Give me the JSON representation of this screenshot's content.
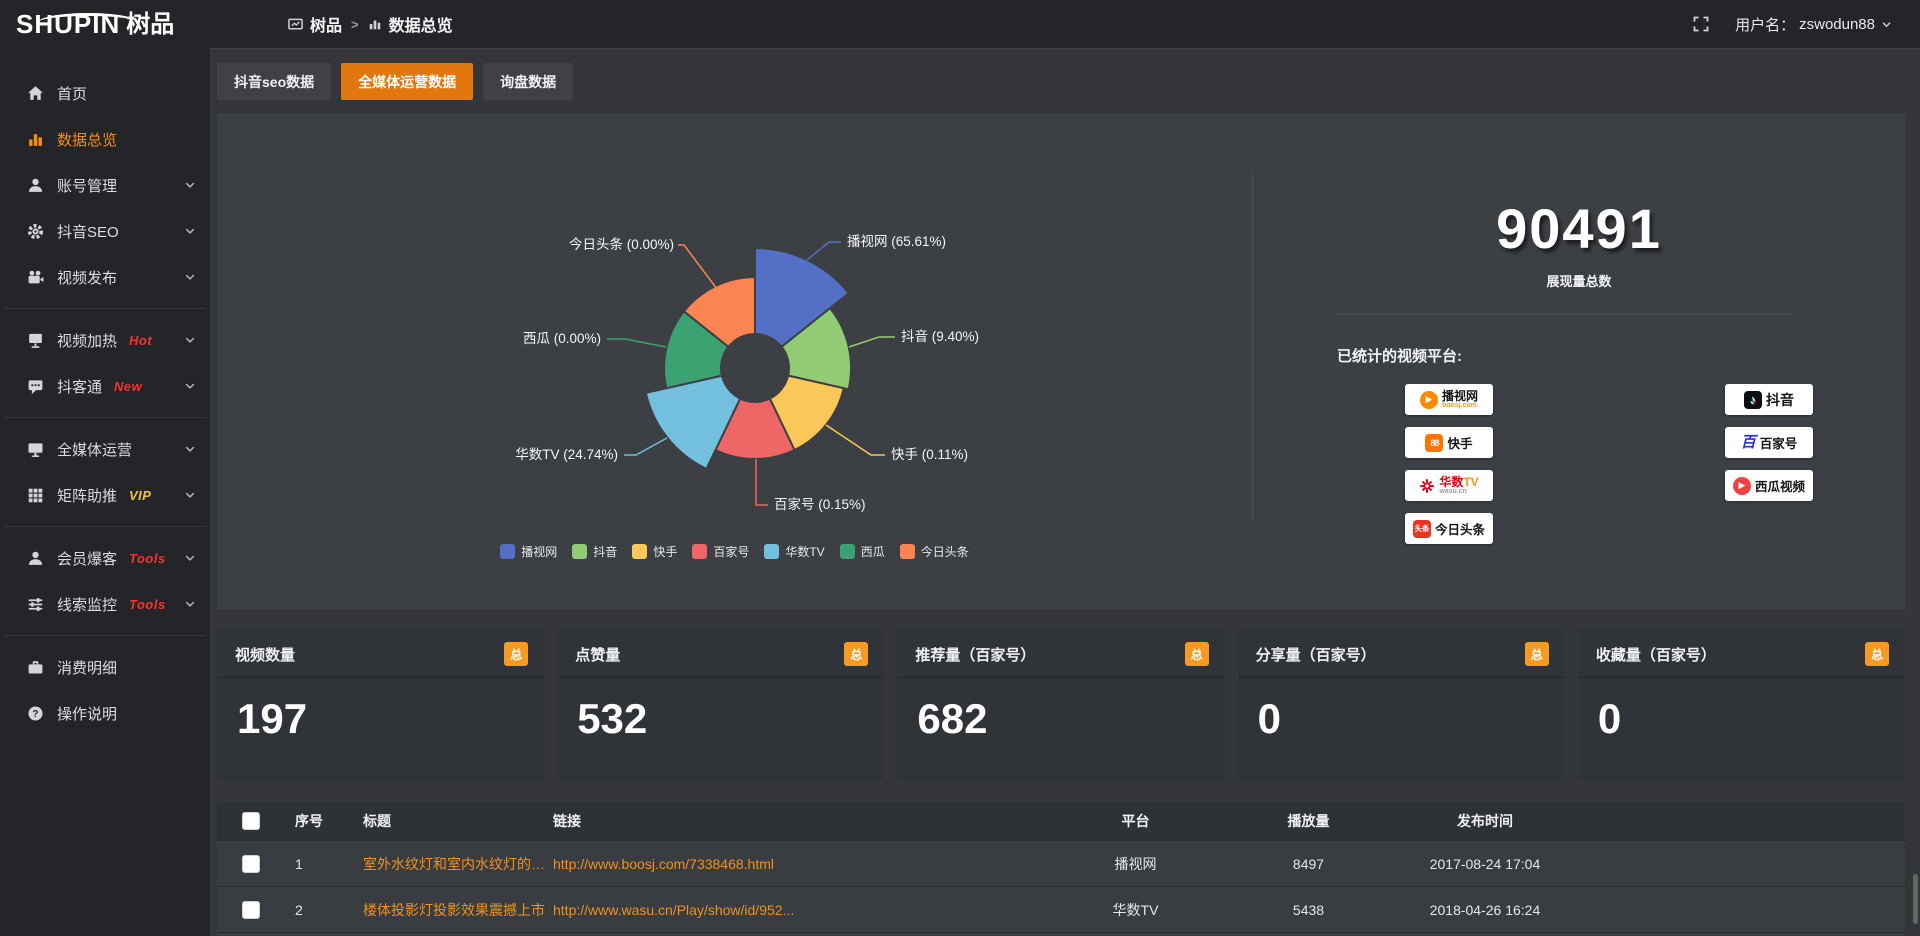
{
  "topbar": {
    "logo_en": "SHUPIN",
    "logo_cn": "树品",
    "breadcrumb": [
      "树品",
      "数据总览"
    ],
    "breadcrumb_sep": ">",
    "username_label": "用户名：",
    "username": "zswodun88"
  },
  "sidebar": {
    "items": [
      {
        "icon": "home",
        "label": "首页"
      },
      {
        "icon": "chart-bars",
        "label": "数据总览",
        "active": true
      },
      {
        "icon": "user",
        "label": "账号管理",
        "chevron": true
      },
      {
        "icon": "gear",
        "label": "抖音SEO",
        "chevron": true
      },
      {
        "icon": "video-camera",
        "label": "视频发布",
        "chevron": true,
        "divider_after": true
      },
      {
        "icon": "screen-stand",
        "label": "视频加热",
        "badge": "Hot",
        "badge_color": "#f5342e",
        "chevron": true
      },
      {
        "icon": "chat",
        "label": "抖客通",
        "badge": "New",
        "badge_color": "#f5342e",
        "chevron": true,
        "divider_after": true
      },
      {
        "icon": "monitor",
        "label": "全媒体运营",
        "chevron": true
      },
      {
        "icon": "grid",
        "label": "矩阵助推",
        "badge": "VIP",
        "badge_color": "#f6c344",
        "chevron": true,
        "divider_after": true
      },
      {
        "icon": "person",
        "label": "会员爆客",
        "badge": "Tools",
        "badge_color": "#f5342e",
        "chevron": true
      },
      {
        "icon": "sliders",
        "label": "线索监控",
        "badge": "Tools",
        "badge_color": "#f5342e",
        "chevron": true,
        "divider_after": true
      },
      {
        "icon": "wallet",
        "label": "消费明细"
      },
      {
        "icon": "question",
        "label": "操作说明"
      }
    ]
  },
  "tabs": [
    {
      "label": "抖音seo数据",
      "active": false
    },
    {
      "label": "全媒体运营数据",
      "active": true
    },
    {
      "label": "询盘数据",
      "active": false
    }
  ],
  "chart_data": {
    "type": "pie",
    "variant": "nightingale-rose",
    "labels": [
      "播视网",
      "抖音",
      "快手",
      "百家号",
      "华数TV",
      "西瓜",
      "今日头条"
    ],
    "values_percent": [
      65.61,
      9.4,
      0.11,
      0.15,
      24.74,
      0.0,
      0.0
    ],
    "colors": [
      "#5470c6",
      "#91cc75",
      "#fac858",
      "#ee6666",
      "#73c0de",
      "#3ba272",
      "#fc8452"
    ],
    "label_format": "{name} ({pct}%)",
    "legend": [
      "播视网",
      "抖音",
      "快手",
      "百家号",
      "华数TV",
      "西瓜",
      "今日头条"
    ],
    "legend_position": "bottom"
  },
  "summary": {
    "total_value": "90491",
    "total_label": "展现量总数",
    "platforms_label": "已统计的视频平台:",
    "platforms": [
      {
        "name": "播视网",
        "sub": "boosj.com",
        "logo": "boosj"
      },
      {
        "name": "快手",
        "logo": "kuaishou"
      },
      {
        "name": "华数TV",
        "sub": "wasu.cn",
        "logo": "wasu"
      },
      {
        "name": "今日头条",
        "logo": "toutiao"
      },
      {
        "name": "抖音",
        "logo": "douyin"
      },
      {
        "name": "百家号",
        "logo": "baijiahao"
      },
      {
        "name": "西瓜视频",
        "logo": "xigua"
      }
    ]
  },
  "stat_cards": [
    {
      "label": "视频数量",
      "badge": "总",
      "value": "197"
    },
    {
      "label": "点赞量",
      "badge": "总",
      "value": "532"
    },
    {
      "label": "推荐量（百家号）",
      "badge": "总",
      "value": "682"
    },
    {
      "label": "分享量（百家号）",
      "badge": "总",
      "value": "0"
    },
    {
      "label": "收藏量（百家号）",
      "badge": "总",
      "value": "0"
    }
  ],
  "table": {
    "headers": [
      "序号",
      "标题",
      "链接",
      "平台",
      "播放量",
      "发布时间"
    ],
    "rows": [
      {
        "no": "1",
        "title": "室外水纹灯和室内水纹灯的区别和简介",
        "link": "http://www.boosj.com/7338468.html",
        "platform": "播视网",
        "plays": "8497",
        "time": "2017-08-24 17:04"
      },
      {
        "no": "2",
        "title": "楼体投影灯投影效果震撼上市",
        "link": "http://www.wasu.cn/Play/show/id/952...",
        "platform": "华数TV",
        "plays": "5438",
        "time": "2018-04-26 16:24"
      }
    ]
  }
}
